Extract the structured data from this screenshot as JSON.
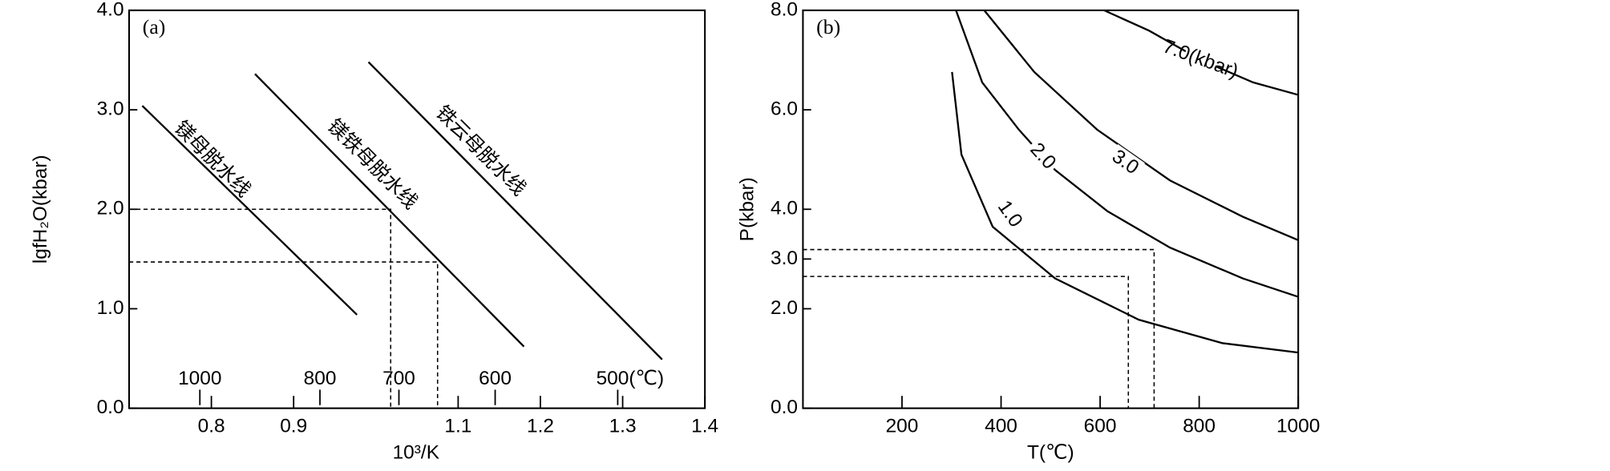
{
  "chart_data": [
    {
      "type": "line",
      "panel_label": "(a)",
      "x_label": "10³/K",
      "y_label": "lgfH₂O(kbar)",
      "xlim": [
        0.7,
        1.4
      ],
      "ylim": [
        0,
        4
      ],
      "xticks": [
        0.8,
        0.9,
        1.1,
        1.2,
        1.3,
        1.4
      ],
      "yticks": [
        {
          "value": 0,
          "label": "0.0"
        },
        {
          "value": 1,
          "label": "1.0"
        },
        {
          "value": 2,
          "label": "2.0"
        },
        {
          "value": 3,
          "label": "3.0"
        },
        {
          "value": 4,
          "label": "4.0"
        }
      ],
      "temperature_ticks": [
        {
          "value": 0.786,
          "label": "1000"
        },
        {
          "value": 0.932,
          "label": "800"
        },
        {
          "value": 1.028,
          "label": "700"
        },
        {
          "value": 1.145,
          "label": "600"
        },
        {
          "value": 1.294,
          "label": "500(℃)"
        }
      ],
      "series": [
        {
          "name": "镁母脱水线",
          "x": [
            0.716,
            0.977
          ],
          "values": [
            3.04,
            0.94
          ]
        },
        {
          "name": "镁铁母脱水线",
          "x": [
            0.853,
            1.18
          ],
          "values": [
            3.36,
            0.62
          ]
        },
        {
          "name": "铁云母脱水线",
          "x": [
            0.991,
            1.348
          ],
          "values": [
            3.48,
            0.49
          ]
        }
      ],
      "guides": [
        {
          "x": 1.018,
          "y": 2.0
        },
        {
          "x": 1.075,
          "y": 1.47
        }
      ]
    },
    {
      "type": "line",
      "panel_label": "(b)",
      "x_label": "T(℃)",
      "y_label": "P(kbar)",
      "xlim": [
        0,
        1000
      ],
      "ylim": [
        0,
        8
      ],
      "xticks": [
        200,
        400,
        600,
        800,
        1000
      ],
      "yticks": [
        {
          "value": 0,
          "label": "0.0"
        },
        {
          "value": 2,
          "label": "2.0"
        },
        {
          "value": 3,
          "label": "3.0"
        },
        {
          "value": 4,
          "label": "4.0"
        },
        {
          "value": 6,
          "label": "6.0"
        },
        {
          "value": 8,
          "label": "8.0"
        }
      ],
      "series": [
        {
          "name": "1.0",
          "x": [
            301,
            320,
            383,
            509,
            678,
            846,
            1000
          ],
          "values": [
            6.76,
            5.1,
            3.65,
            2.61,
            1.78,
            1.31,
            1.12
          ]
        },
        {
          "name": "2.0",
          "x": [
            309,
            362,
            436,
            509,
            615,
            741,
            888,
            1000
          ],
          "values": [
            8.0,
            6.55,
            5.6,
            4.79,
            3.96,
            3.23,
            2.61,
            2.24
          ]
        },
        {
          "name": "3.0",
          "x": [
            366,
            467,
            594,
            741,
            888,
            1000
          ],
          "values": [
            8.0,
            6.76,
            5.6,
            4.58,
            3.85,
            3.38
          ]
        },
        {
          "name": "7.0(kbar)",
          "x": [
            608,
            699,
            804,
            909,
            1000
          ],
          "values": [
            8.0,
            7.59,
            7.0,
            6.55,
            6.3
          ]
        }
      ],
      "guides": [
        {
          "x": 709,
          "y": 3.19
        },
        {
          "x": 657,
          "y": 2.65
        }
      ]
    }
  ]
}
